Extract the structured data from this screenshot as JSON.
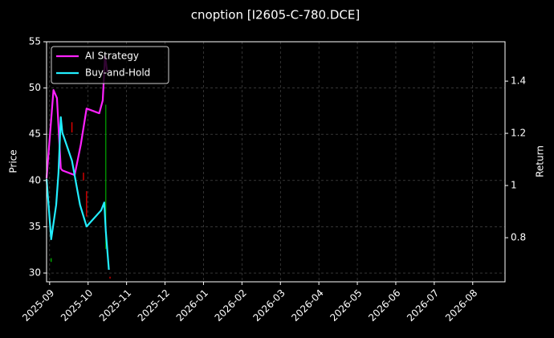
{
  "chart_data": {
    "type": "line",
    "title": "cnoption [I2605-C-780.DCE]",
    "ylabel": "Price",
    "y2label": "Return",
    "xlim": [
      -0.08,
      11.84
    ],
    "xticks": [
      {
        "value": 0,
        "label": "2025-09"
      },
      {
        "value": 1,
        "label": "2025-10"
      },
      {
        "value": 2,
        "label": "2025-11"
      },
      {
        "value": 3,
        "label": "2025-12"
      },
      {
        "value": 4,
        "label": "2026-01"
      },
      {
        "value": 5,
        "label": "2026-02"
      },
      {
        "value": 6,
        "label": "2026-03"
      },
      {
        "value": 7,
        "label": "2026-04"
      },
      {
        "value": 8,
        "label": "2026-05"
      },
      {
        "value": 9,
        "label": "2026-06"
      },
      {
        "value": 10,
        "label": "2026-07"
      },
      {
        "value": 11,
        "label": "2026-08"
      }
    ],
    "ylim": [
      29.05,
      55
    ],
    "yticks": [
      30,
      35,
      40,
      45,
      50,
      55
    ],
    "y2lim": [
      0.631,
      1.551
    ],
    "y2ticks": [
      0.8,
      1.0,
      1.2,
      1.4
    ],
    "grid": true,
    "legend": "upper left",
    "series": [
      {
        "name": "AI Strategy",
        "color": "#ff22ff",
        "axis": "y2",
        "x": [
          -0.08,
          0.1,
          0.19,
          0.29,
          0.33,
          0.65,
          0.81,
          0.96,
          1.29,
          1.38,
          1.44,
          1.5
        ],
        "values": [
          1.028,
          1.366,
          1.335,
          1.065,
          1.058,
          1.04,
          1.157,
          1.295,
          1.277,
          1.326,
          1.495,
          1.434
        ]
      },
      {
        "name": "Buy-and-Hold",
        "color": "#22eeff",
        "axis": "y2",
        "x": [
          -0.08,
          0.04,
          0.17,
          0.23,
          0.29,
          0.33,
          0.58,
          0.79,
          0.96,
          1.34,
          1.42,
          1.46,
          1.54
        ],
        "values": [
          1.025,
          0.794,
          0.926,
          1.049,
          1.262,
          1.203,
          1.095,
          0.926,
          0.843,
          0.905,
          0.935,
          0.825,
          0.677
        ]
      }
    ],
    "wicks": {
      "x": [
        0.04,
        0.58,
        0.88,
        0.96,
        1.46,
        1.57
      ],
      "low": [
        31.2,
        45.2,
        40.0,
        36.1,
        32.6,
        29.4
      ],
      "high": [
        31.6,
        46.3,
        40.85,
        38.85,
        48.2,
        29.6
      ],
      "colors": [
        "#00cc00",
        "#ff0000",
        "#ff0000",
        "#ff0000",
        "#00aa00",
        "#ff0000"
      ]
    }
  }
}
